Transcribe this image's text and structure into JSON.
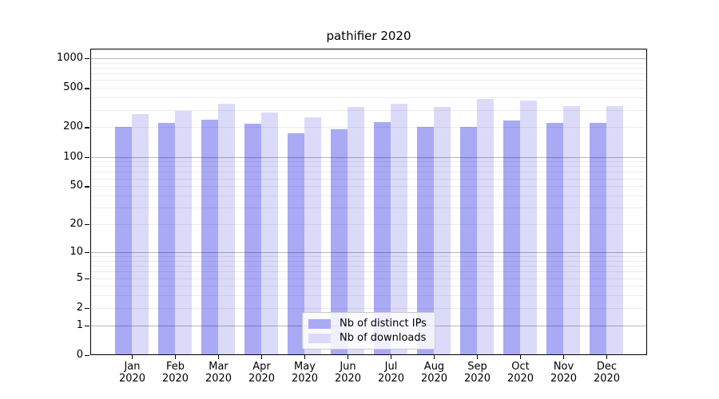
{
  "title": "pathifier 2020",
  "chart_data": {
    "type": "bar",
    "title": "pathifier 2020",
    "x_months": [
      "Jan",
      "Feb",
      "Mar",
      "Apr",
      "May",
      "Jun",
      "Jul",
      "Aug",
      "Sep",
      "Oct",
      "Nov",
      "Dec"
    ],
    "x_year": "2020",
    "categories": [
      "Jan 2020",
      "Feb 2020",
      "Mar 2020",
      "Apr 2020",
      "May 2020",
      "Jun 2020",
      "Jul 2020",
      "Aug 2020",
      "Sep 2020",
      "Oct 2020",
      "Nov 2020",
      "Dec 2020"
    ],
    "series": [
      {
        "name": "Nb of distinct IPs",
        "color": "#a9a9f6",
        "values": [
          200,
          222,
          240,
          218,
          173,
          191,
          225,
          203,
          200,
          232,
          220,
          222
        ]
      },
      {
        "name": "Nb of downloads",
        "color": "#dbdbf9",
        "values": [
          270,
          291,
          346,
          280,
          252,
          320,
          345,
          324,
          390,
          373,
          325,
          330
        ]
      }
    ],
    "y_ticks": [
      0,
      1,
      2,
      5,
      10,
      20,
      50,
      100,
      200,
      500,
      1000
    ],
    "y_scale": "log10(1+v)",
    "ylim": [
      0,
      1300
    ],
    "grid": true,
    "legend_position": "inside-bottom-center",
    "colors": {
      "axis": "#000000",
      "grid_minor": "#ededed",
      "grid_major": "#b8b8b8",
      "background": "#ffffff"
    }
  }
}
